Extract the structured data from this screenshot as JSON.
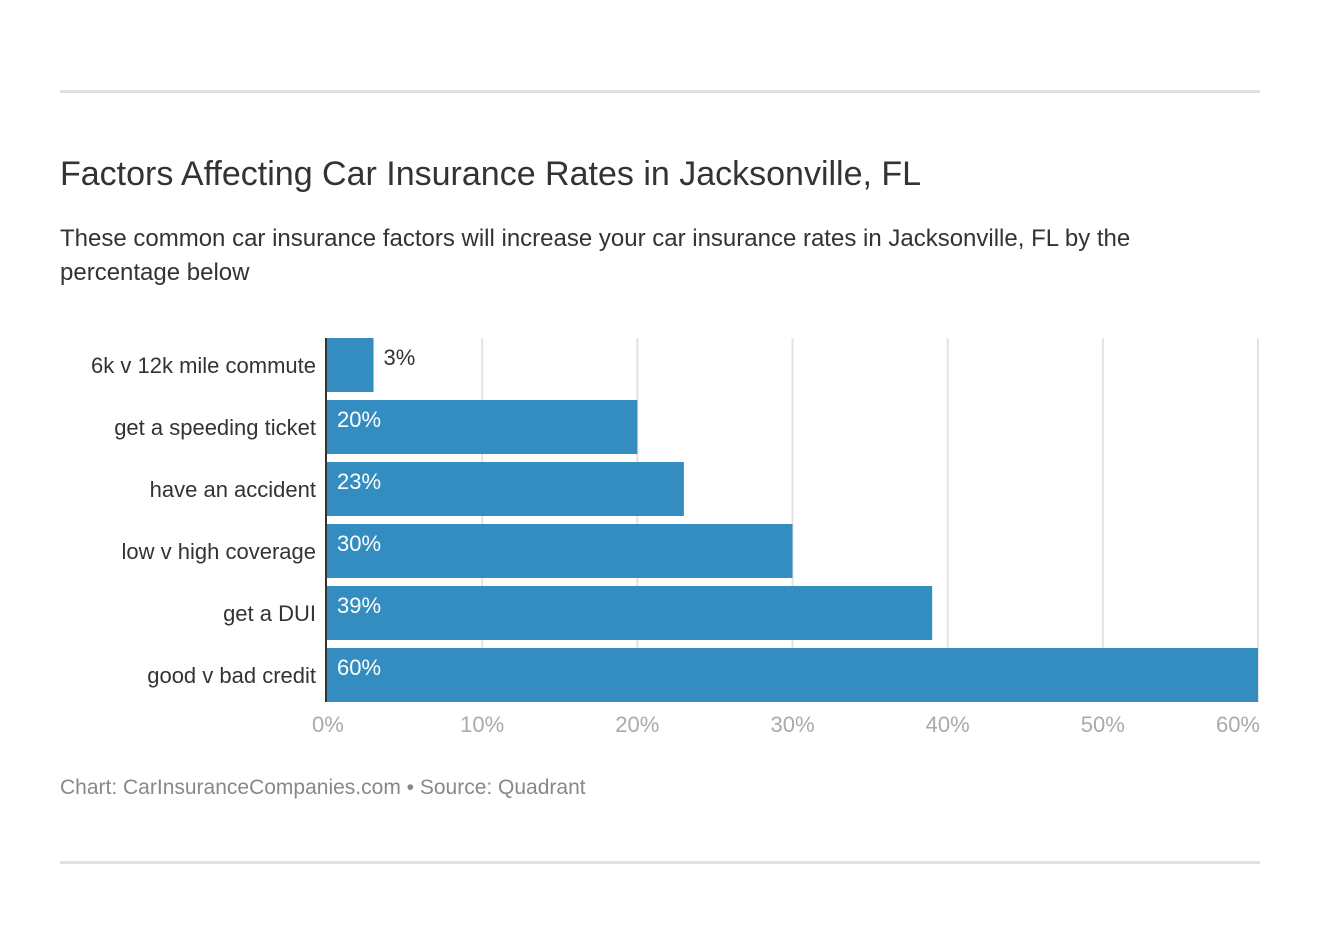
{
  "title": "Factors Affecting Car Insurance Rates in Jacksonville, FL",
  "subtitle": "These common car insurance factors will increase your car insurance rates in Jacksonville, FL by the percentage below",
  "footer": "Chart: CarInsuranceCompanies.com • Source: Quadrant",
  "chart_data": {
    "type": "bar",
    "orientation": "horizontal",
    "categories": [
      "6k v 12k mile commute",
      "get a speeding ticket",
      "have an accident",
      "low v high coverage",
      "get a DUI",
      "good v bad credit"
    ],
    "values": [
      3,
      20,
      23,
      30,
      39,
      60
    ],
    "data_labels": [
      "3%",
      "20%",
      "23%",
      "30%",
      "39%",
      "60%"
    ],
    "xlim": [
      0,
      60
    ],
    "x_ticks": [
      0,
      10,
      20,
      30,
      40,
      50,
      60
    ],
    "x_tick_labels": [
      "0%",
      "10%",
      "20%",
      "30%",
      "40%",
      "50%",
      "60%"
    ],
    "grid": true,
    "bar_color": "#348dc1"
  }
}
